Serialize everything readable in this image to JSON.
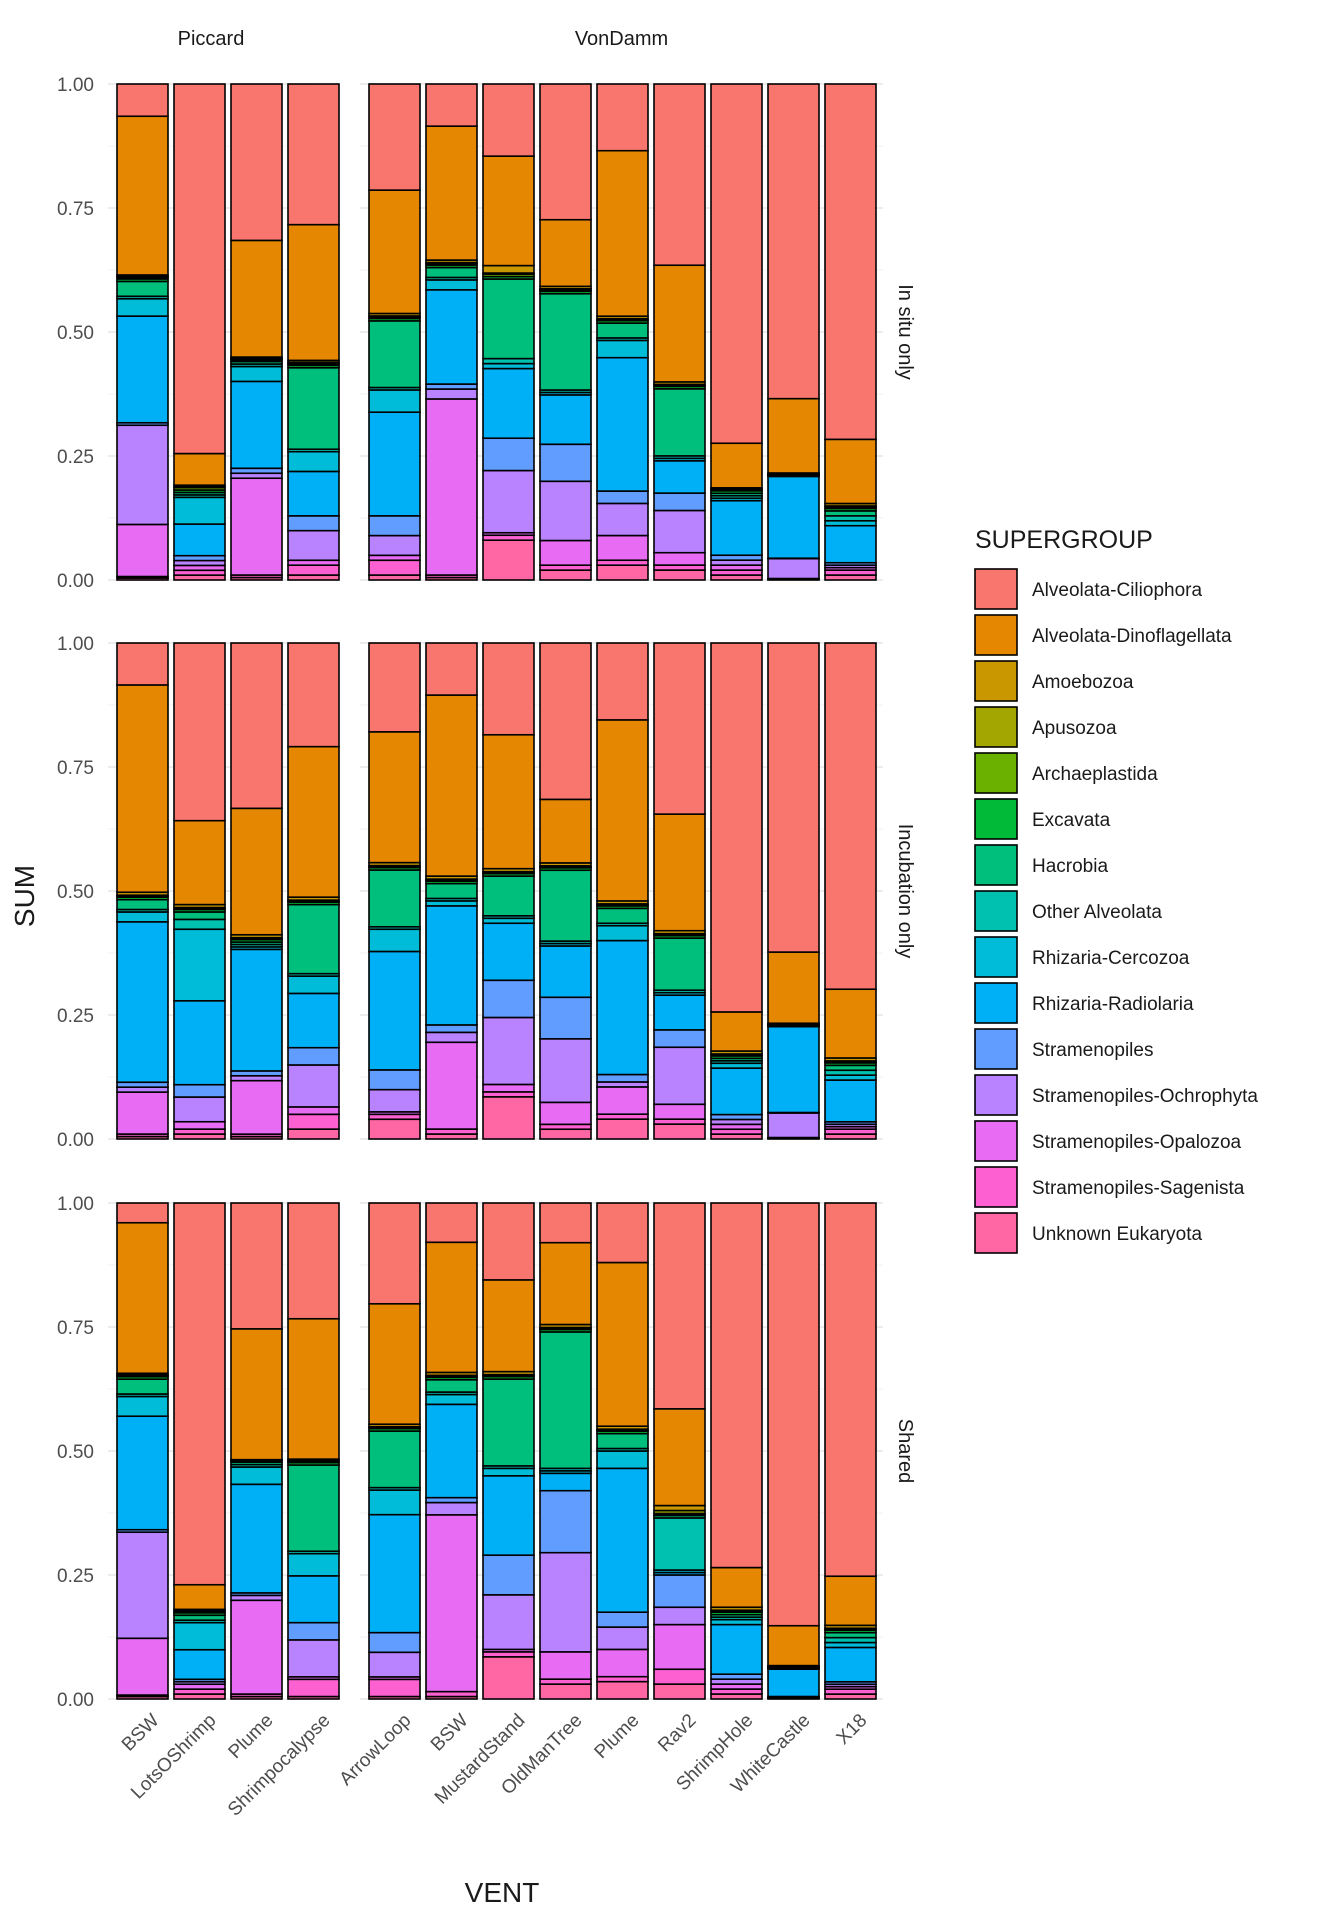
{
  "chart_data": {
    "type": "bar",
    "stacked": true,
    "normalized": true,
    "xlabel": "VENT",
    "ylabel": "SUM",
    "ylim": [
      0,
      1
    ],
    "y_ticks": [
      "0.00",
      "0.25",
      "0.50",
      "0.75",
      "1.00"
    ],
    "grid": true,
    "legend_position": "right",
    "legend_title": "SUPERGROUP",
    "column_facets": [
      {
        "name": "Piccard",
        "categories": [
          "BSW",
          "LotsOShrimp",
          "Plume",
          "Shrimpocalypse"
        ]
      },
      {
        "name": "VonDamm",
        "categories": [
          "ArrowLoop",
          "BSW",
          "MustardStand",
          "OldManTree",
          "Plume",
          "Rav2",
          "ShrimpHole",
          "WhiteCastle",
          "X18"
        ]
      }
    ],
    "row_facets": [
      "In situ only",
      "Incubation only",
      "Shared"
    ],
    "groups": [
      {
        "name": "Alveolata-Ciliophora",
        "color": "#F8766D"
      },
      {
        "name": "Alveolata-Dinoflagellata",
        "color": "#E58700"
      },
      {
        "name": "Amoebozoa",
        "color": "#C99800"
      },
      {
        "name": "Apusozoa",
        "color": "#A3A500"
      },
      {
        "name": "Archaeplastida",
        "color": "#6BB100"
      },
      {
        "name": "Excavata",
        "color": "#00BA38"
      },
      {
        "name": "Hacrobia",
        "color": "#00BF7D"
      },
      {
        "name": "Other Alveolata",
        "color": "#00C0AF"
      },
      {
        "name": "Rhizaria-Cercozoa",
        "color": "#00BCD8"
      },
      {
        "name": "Rhizaria-Radiolaria",
        "color": "#00B0F6"
      },
      {
        "name": "Stramenopiles",
        "color": "#619CFF"
      },
      {
        "name": "Stramenopiles-Ochrophyta",
        "color": "#B983FF"
      },
      {
        "name": "Stramenopiles-Opalozoa",
        "color": "#E76BF3"
      },
      {
        "name": "Stramenopiles-Sagenista",
        "color": "#FD61D1"
      },
      {
        "name": "Unknown Eukaryota",
        "color": "#FF67A4"
      }
    ],
    "stack_order_note": "values listed bottom-to-top: Unknown Eukaryota, Stramenopiles-Sagenista, Stramenopiles-Opalozoa, Stramenopiles-Ochrophyta, Stramenopiles, Rhizaria-Radiolaria, Rhizaria-Cercozoa, Other Alveolata, Hacrobia, Excavata, Archaeplastida, Apusozoa, Amoebozoa, Alveolata-Dinoflagellata, Alveolata-Ciliophora",
    "bars": [
      [
        [
          [
            0.004,
            0.003,
            0.105,
            0.2,
            0.005,
            0.215,
            0.035,
            0.005,
            0.03,
            0.005,
            0.003,
            0.002,
            0.003,
            0.32,
            0.065
          ],
          [
            0.01,
            0.01,
            0.01,
            0.01,
            0.01,
            0.065,
            0.055,
            0.005,
            0.005,
            0.005,
            0.005,
            0.002,
            0.003,
            0.065,
            0.76
          ],
          [
            0.005,
            0.005,
            0.195,
            0.01,
            0.01,
            0.175,
            0.03,
            0.005,
            0.005,
            0.003,
            0.002,
            0.002,
            0.002,
            0.235,
            0.315
          ],
          [
            0.01,
            0.02,
            0.01,
            0.06,
            0.03,
            0.09,
            0.04,
            0.005,
            0.165,
            0.005,
            0.003,
            0.003,
            0.004,
            0.275,
            0.285
          ]
        ],
        [
          [
            0.01,
            0.03,
            0.01,
            0.04,
            0.04,
            0.21,
            0.045,
            0.005,
            0.135,
            0.005,
            0.003,
            0.002,
            0.005,
            0.25,
            0.215
          ],
          [
            0.005,
            0.005,
            0.355,
            0.02,
            0.01,
            0.19,
            0.02,
            0.005,
            0.02,
            0.005,
            0.003,
            0.002,
            0.005,
            0.27,
            0.085
          ],
          [
            0.08,
            0.01,
            0.005,
            0.125,
            0.065,
            0.14,
            0.01,
            0.01,
            0.16,
            0.005,
            0.005,
            0.002,
            0.015,
            0.22,
            0.145
          ],
          [
            0.02,
            0.01,
            0.05,
            0.12,
            0.075,
            0.1,
            0.005,
            0.005,
            0.195,
            0.005,
            0.003,
            0.002,
            0.005,
            0.135,
            0.275
          ],
          [
            0.03,
            0.01,
            0.05,
            0.065,
            0.025,
            0.27,
            0.035,
            0.005,
            0.03,
            0.005,
            0.002,
            0.002,
            0.005,
            0.335,
            0.135
          ],
          [
            0.02,
            0.01,
            0.025,
            0.085,
            0.035,
            0.065,
            0.005,
            0.005,
            0.135,
            0.005,
            0.002,
            0.002,
            0.005,
            0.235,
            0.365
          ],
          [
            0.01,
            0.01,
            0.01,
            0.01,
            0.01,
            0.11,
            0.005,
            0.005,
            0.005,
            0.005,
            0.002,
            0.002,
            0.002,
            0.09,
            0.725
          ],
          [
            0.001,
            0.001,
            0.001,
            0.04,
            0.001,
            0.165,
            0.001,
            0.001,
            0.001,
            0.001,
            0.001,
            0.001,
            0.001,
            0.15,
            0.635
          ],
          [
            0.01,
            0.01,
            0.005,
            0.005,
            0.005,
            0.075,
            0.01,
            0.01,
            0.01,
            0.005,
            0.003,
            0.002,
            0.005,
            0.13,
            0.72
          ]
        ]
      ],
      [
        [
          [
            0.005,
            0.005,
            0.085,
            0.01,
            0.01,
            0.325,
            0.02,
            0.005,
            0.02,
            0.005,
            0.002,
            0.002,
            0.006,
            0.42,
            0.085
          ],
          [
            0.01,
            0.01,
            0.015,
            0.05,
            0.025,
            0.17,
            0.145,
            0.02,
            0.015,
            0.005,
            0.002,
            0.002,
            0.006,
            0.17,
            0.36
          ],
          [
            0.005,
            0.005,
            0.11,
            0.01,
            0.01,
            0.25,
            0.005,
            0.005,
            0.005,
            0.005,
            0.002,
            0.002,
            0.006,
            0.26,
            0.34
          ],
          [
            0.02,
            0.03,
            0.015,
            0.085,
            0.035,
            0.11,
            0.035,
            0.005,
            0.14,
            0.005,
            0.002,
            0.002,
            0.006,
            0.305,
            0.21
          ]
        ],
        [
          [
            0.04,
            0.01,
            0.005,
            0.045,
            0.04,
            0.24,
            0.045,
            0.005,
            0.115,
            0.005,
            0.002,
            0.002,
            0.006,
            0.265,
            0.18
          ],
          [
            0.01,
            0.01,
            0.175,
            0.02,
            0.015,
            0.24,
            0.01,
            0.005,
            0.03,
            0.005,
            0.002,
            0.002,
            0.006,
            0.365,
            0.105
          ],
          [
            0.085,
            0.01,
            0.015,
            0.135,
            0.075,
            0.115,
            0.01,
            0.005,
            0.08,
            0.005,
            0.002,
            0.002,
            0.006,
            0.27,
            0.185
          ],
          [
            0.02,
            0.01,
            0.045,
            0.13,
            0.085,
            0.105,
            0.005,
            0.005,
            0.145,
            0.005,
            0.002,
            0.002,
            0.006,
            0.13,
            0.32
          ],
          [
            0.04,
            0.01,
            0.055,
            0.01,
            0.015,
            0.27,
            0.03,
            0.005,
            0.03,
            0.005,
            0.002,
            0.002,
            0.006,
            0.365,
            0.155
          ],
          [
            0.03,
            0.01,
            0.03,
            0.115,
            0.035,
            0.07,
            0.005,
            0.005,
            0.105,
            0.005,
            0.002,
            0.002,
            0.006,
            0.235,
            0.345
          ],
          [
            0.01,
            0.01,
            0.01,
            0.01,
            0.01,
            0.095,
            0.01,
            0.005,
            0.005,
            0.005,
            0.002,
            0.002,
            0.006,
            0.08,
            0.755
          ],
          [
            0.001,
            0.001,
            0.001,
            0.05,
            0.001,
            0.175,
            0.001,
            0.001,
            0.001,
            0.001,
            0.001,
            0.001,
            0.001,
            0.145,
            0.63
          ],
          [
            0.01,
            0.01,
            0.005,
            0.005,
            0.005,
            0.085,
            0.01,
            0.01,
            0.01,
            0.005,
            0.002,
            0.002,
            0.006,
            0.14,
            0.705
          ]
        ]
      ],
      [
        [
          [
            0.005,
            0.003,
            0.115,
            0.215,
            0.005,
            0.23,
            0.04,
            0.005,
            0.03,
            0.005,
            0.002,
            0.002,
            0.003,
            0.305,
            0.04
          ],
          [
            0.01,
            0.01,
            0.01,
            0.005,
            0.005,
            0.06,
            0.055,
            0.005,
            0.01,
            0.005,
            0.002,
            0.002,
            0.003,
            0.05,
            0.775
          ],
          [
            0.005,
            0.005,
            0.19,
            0.01,
            0.005,
            0.22,
            0.035,
            0.005,
            0.005,
            0.002,
            0.001,
            0.001,
            0.001,
            0.265,
            0.255
          ],
          [
            0.005,
            0.035,
            0.005,
            0.075,
            0.035,
            0.095,
            0.045,
            0.005,
            0.175,
            0.005,
            0.002,
            0.002,
            0.003,
            0.285,
            0.235
          ]
        ],
        [
          [
            0.005,
            0.035,
            0.005,
            0.05,
            0.04,
            0.24,
            0.05,
            0.005,
            0.115,
            0.005,
            0.002,
            0.002,
            0.005,
            0.245,
            0.205
          ],
          [
            0.005,
            0.01,
            0.36,
            0.025,
            0.01,
            0.19,
            0.02,
            0.005,
            0.025,
            0.005,
            0.002,
            0.002,
            0.006,
            0.265,
            0.08
          ],
          [
            0.085,
            0.01,
            0.005,
            0.11,
            0.08,
            0.16,
            0.015,
            0.005,
            0.175,
            0.005,
            0.002,
            0.002,
            0.006,
            0.185,
            0.155
          ],
          [
            0.03,
            0.01,
            0.055,
            0.2,
            0.125,
            0.035,
            0.005,
            0.005,
            0.275,
            0.005,
            0.002,
            0.002,
            0.006,
            0.165,
            0.08
          ],
          [
            0.035,
            0.01,
            0.055,
            0.045,
            0.03,
            0.29,
            0.035,
            0.005,
            0.03,
            0.005,
            0.002,
            0.002,
            0.006,
            0.33,
            0.12
          ],
          [
            0.03,
            0.03,
            0.09,
            0.035,
            0.065,
            0.005,
            0.005,
            0.105,
            0.005,
            0.002,
            0.002,
            0.006,
            0.01,
            0.195,
            0.415
          ],
          [
            0.01,
            0.01,
            0.01,
            0.01,
            0.01,
            0.1,
            0.01,
            0.005,
            0.005,
            0.005,
            0.002,
            0.002,
            0.006,
            0.08,
            0.735
          ],
          [
            0.001,
            0.001,
            0.001,
            0.001,
            0.001,
            0.055,
            0.001,
            0.001,
            0.001,
            0.001,
            0.001,
            0.001,
            0.001,
            0.08,
            0.848
          ],
          [
            0.01,
            0.01,
            0.005,
            0.005,
            0.005,
            0.07,
            0.01,
            0.01,
            0.01,
            0.005,
            0.002,
            0.002,
            0.006,
            0.1,
            0.76
          ]
        ]
      ]
    ]
  }
}
